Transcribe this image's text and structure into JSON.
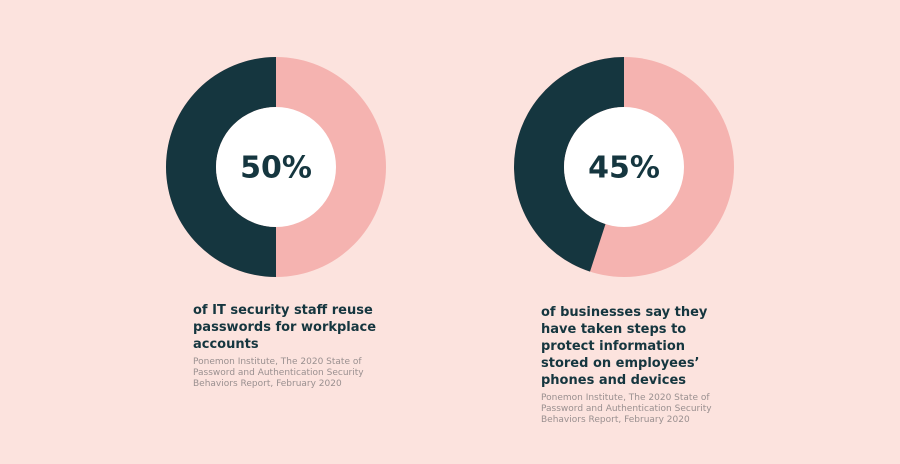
{
  "chart_data": [
    {
      "type": "pie",
      "values": [
        50
      ],
      "value_labels": [
        "50%"
      ],
      "colors": [
        "#15363f"
      ],
      "rest_color": "#f5b3b0",
      "caption": "of IT security staff reuse passwords for workplace accounts",
      "source": "Ponemon Institute, The 2020 State of Password and Authentication Security Behaviors Report, February 2020"
    },
    {
      "type": "pie",
      "values": [
        45
      ],
      "value_labels": [
        "45%"
      ],
      "colors": [
        "#15363f"
      ],
      "rest_color": "#f5b3b0",
      "caption": "of businesses say they have taken steps to protect information stored on employees’ phones and devices",
      "source": "Ponemon Institute, The 2020 State of Password and Authentication Security Behaviors Report, February 2020"
    }
  ]
}
